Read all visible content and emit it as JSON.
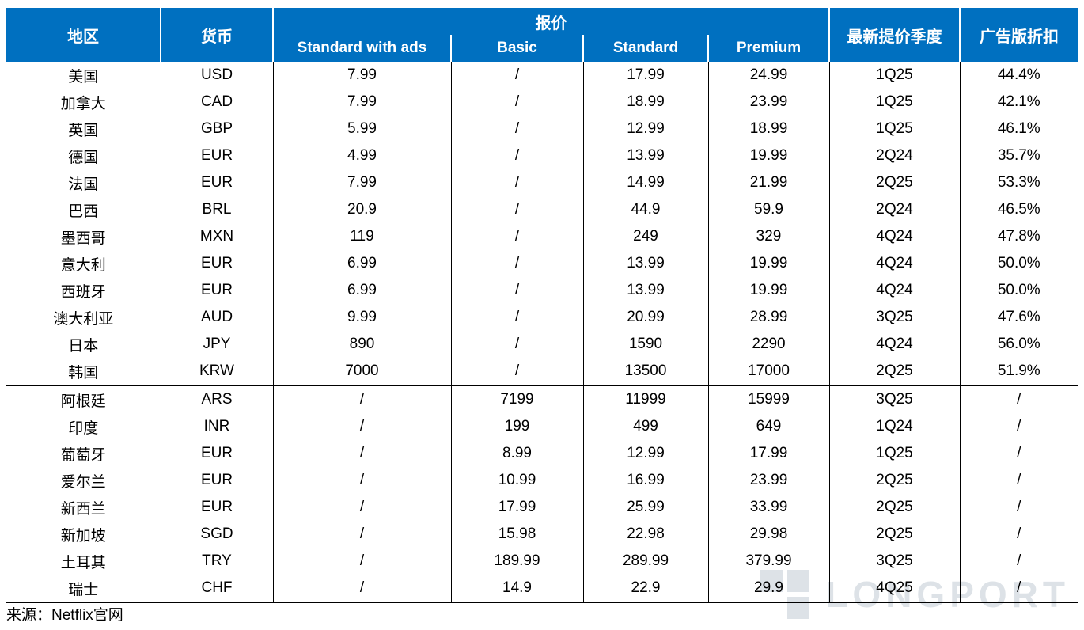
{
  "chart_data": {
    "type": "table",
    "header": {
      "region": "地区",
      "currency": "货币",
      "pricing_group": "报价",
      "plan_columns": [
        "Standard with ads",
        "Basic",
        "Standard",
        "Premium"
      ],
      "latest_price_increase_quarter": "最新提价季度",
      "ads_tier_discount": "广告版折扣"
    },
    "rows_with_ads": [
      {
        "region": "美国",
        "currency": "USD",
        "standard_with_ads": "7.99",
        "basic": "/",
        "standard": "17.99",
        "premium": "24.99",
        "quarter": "1Q25",
        "discount": "44.4%"
      },
      {
        "region": "加拿大",
        "currency": "CAD",
        "standard_with_ads": "7.99",
        "basic": "/",
        "standard": "18.99",
        "premium": "23.99",
        "quarter": "1Q25",
        "discount": "42.1%"
      },
      {
        "region": "英国",
        "currency": "GBP",
        "standard_with_ads": "5.99",
        "basic": "/",
        "standard": "12.99",
        "premium": "18.99",
        "quarter": "1Q25",
        "discount": "46.1%"
      },
      {
        "region": "德国",
        "currency": "EUR",
        "standard_with_ads": "4.99",
        "basic": "/",
        "standard": "13.99",
        "premium": "19.99",
        "quarter": "2Q24",
        "discount": "35.7%"
      },
      {
        "region": "法国",
        "currency": "EUR",
        "standard_with_ads": "7.99",
        "basic": "/",
        "standard": "14.99",
        "premium": "21.99",
        "quarter": "2Q25",
        "discount": "53.3%"
      },
      {
        "region": "巴西",
        "currency": "BRL",
        "standard_with_ads": "20.9",
        "basic": "/",
        "standard": "44.9",
        "premium": "59.9",
        "quarter": "2Q24",
        "discount": "46.5%"
      },
      {
        "region": "墨西哥",
        "currency": "MXN",
        "standard_with_ads": "119",
        "basic": "/",
        "standard": "249",
        "premium": "329",
        "quarter": "4Q24",
        "discount": "47.8%"
      },
      {
        "region": "意大利",
        "currency": "EUR",
        "standard_with_ads": "6.99",
        "basic": "/",
        "standard": "13.99",
        "premium": "19.99",
        "quarter": "4Q24",
        "discount": "50.0%"
      },
      {
        "region": "西班牙",
        "currency": "EUR",
        "standard_with_ads": "6.99",
        "basic": "/",
        "standard": "13.99",
        "premium": "19.99",
        "quarter": "4Q24",
        "discount": "50.0%"
      },
      {
        "region": "澳大利亚",
        "currency": "AUD",
        "standard_with_ads": "9.99",
        "basic": "/",
        "standard": "20.99",
        "premium": "28.99",
        "quarter": "3Q25",
        "discount": "47.6%"
      },
      {
        "region": "日本",
        "currency": "JPY",
        "standard_with_ads": "890",
        "basic": "/",
        "standard": "1590",
        "premium": "2290",
        "quarter": "4Q24",
        "discount": "56.0%"
      },
      {
        "region": "韩国",
        "currency": "KRW",
        "standard_with_ads": "7000",
        "basic": "/",
        "standard": "13500",
        "premium": "17000",
        "quarter": "2Q25",
        "discount": "51.9%"
      }
    ],
    "rows_without_ads": [
      {
        "region": "阿根廷",
        "currency": "ARS",
        "standard_with_ads": "/",
        "basic": "7199",
        "standard": "11999",
        "premium": "15999",
        "quarter": "3Q25",
        "discount": "/"
      },
      {
        "region": "印度",
        "currency": "INR",
        "standard_with_ads": "/",
        "basic": "199",
        "standard": "499",
        "premium": "649",
        "quarter": "1Q24",
        "discount": "/"
      },
      {
        "region": "葡萄牙",
        "currency": "EUR",
        "standard_with_ads": "/",
        "basic": "8.99",
        "standard": "12.99",
        "premium": "17.99",
        "quarter": "1Q25",
        "discount": "/"
      },
      {
        "region": "爱尔兰",
        "currency": "EUR",
        "standard_with_ads": "/",
        "basic": "10.99",
        "standard": "16.99",
        "premium": "23.99",
        "quarter": "2Q25",
        "discount": "/"
      },
      {
        "region": "新西兰",
        "currency": "EUR",
        "standard_with_ads": "/",
        "basic": "17.99",
        "standard": "25.99",
        "premium": "33.99",
        "quarter": "2Q25",
        "discount": "/"
      },
      {
        "region": "新加坡",
        "currency": "SGD",
        "standard_with_ads": "/",
        "basic": "15.98",
        "standard": "22.98",
        "premium": "29.98",
        "quarter": "2Q25",
        "discount": "/"
      },
      {
        "region": "土耳其",
        "currency": "TRY",
        "standard_with_ads": "/",
        "basic": "189.99",
        "standard": "289.99",
        "premium": "379.99",
        "quarter": "3Q25",
        "discount": "/"
      },
      {
        "region": "瑞士",
        "currency": "CHF",
        "standard_with_ads": "/",
        "basic": "14.9",
        "standard": "22.9",
        "premium": "29.9",
        "quarter": "4Q25",
        "discount": "/"
      }
    ]
  },
  "footer": {
    "source": "来源：Netflix官网"
  },
  "watermark": {
    "text": "LONGPORT"
  },
  "colors": {
    "header_bg": "#0070C0",
    "header_text": "#FFFFFF",
    "body_text": "#000000",
    "border": "#000000",
    "watermark": "#DDE2E7"
  }
}
